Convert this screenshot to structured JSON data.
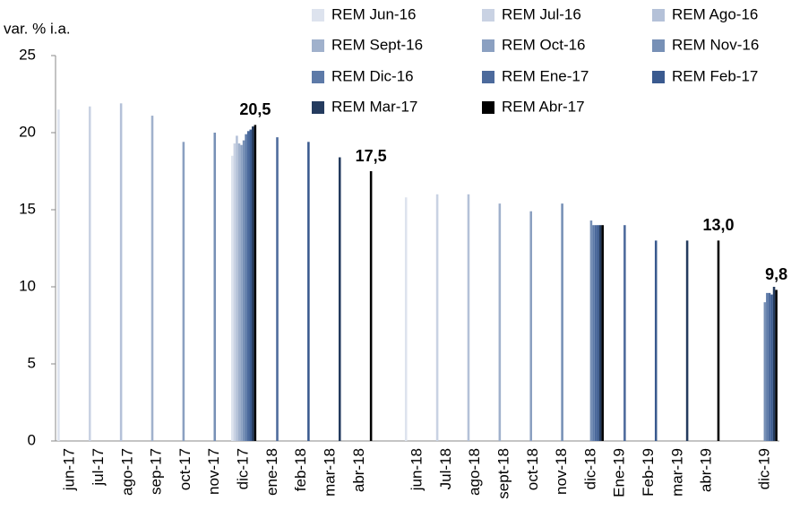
{
  "chart_data": {
    "type": "bar",
    "y_label": "var. % i.a.",
    "categories": [
      "jun-17",
      "jul-17",
      "ago-17",
      "sep-17",
      "oct-17",
      "nov-17",
      "dic-17",
      "ene-18",
      "feb-18",
      "mar-18",
      "abr-18",
      null,
      "jun-18",
      "Jul-18",
      "ago-18",
      "sept-18",
      "oct-18",
      "nov-18",
      "dic-18",
      "Ene-19",
      "Feb-19",
      "mar-19",
      "abr-19",
      null,
      "dic-19"
    ],
    "series": [
      {
        "name": "REM Jun-16",
        "color": "#dde3ee",
        "values": [
          21.5,
          null,
          null,
          null,
          null,
          null,
          18.5,
          null,
          null,
          null,
          null,
          null,
          15.8,
          null,
          null,
          null,
          null,
          null,
          null,
          null,
          null,
          null,
          null,
          null,
          null
        ]
      },
      {
        "name": "REM Jul-16",
        "color": "#c9d2e3",
        "values": [
          null,
          21.7,
          null,
          null,
          null,
          null,
          19.3,
          null,
          null,
          null,
          null,
          null,
          null,
          16.0,
          null,
          null,
          null,
          null,
          null,
          null,
          null,
          null,
          null,
          null,
          null
        ]
      },
      {
        "name": "REM Ago-16",
        "color": "#b4c1d8",
        "values": [
          null,
          null,
          21.9,
          null,
          null,
          null,
          19.8,
          null,
          null,
          null,
          null,
          null,
          null,
          null,
          16.0,
          null,
          null,
          null,
          null,
          null,
          null,
          null,
          null,
          null,
          null
        ]
      },
      {
        "name": "REM Sept-16",
        "color": "#a0b1cc",
        "values": [
          null,
          null,
          null,
          21.1,
          null,
          null,
          19.3,
          null,
          null,
          null,
          null,
          null,
          null,
          null,
          null,
          15.4,
          null,
          null,
          null,
          null,
          null,
          null,
          null,
          null,
          null
        ]
      },
      {
        "name": "REM Oct-16",
        "color": "#8ba0c1",
        "values": [
          null,
          null,
          null,
          null,
          19.4,
          null,
          19.2,
          null,
          null,
          null,
          null,
          null,
          null,
          null,
          null,
          null,
          14.9,
          null,
          null,
          null,
          null,
          null,
          null,
          null,
          null
        ]
      },
      {
        "name": "REM Nov-16",
        "color": "#7790b6",
        "values": [
          null,
          null,
          null,
          null,
          null,
          20.0,
          19.5,
          null,
          null,
          null,
          null,
          null,
          null,
          null,
          null,
          null,
          null,
          15.4,
          14.3,
          null,
          null,
          null,
          null,
          null,
          9.0
        ]
      },
      {
        "name": "REM Dic-16",
        "color": "#5d7aa8",
        "values": [
          null,
          null,
          null,
          null,
          null,
          null,
          19.9,
          null,
          null,
          null,
          null,
          null,
          null,
          null,
          null,
          null,
          null,
          null,
          14.0,
          null,
          null,
          null,
          null,
          null,
          9.6
        ]
      },
      {
        "name": "REM Ene-17",
        "color": "#4c6a9c",
        "values": [
          null,
          null,
          null,
          null,
          null,
          null,
          20.1,
          19.7,
          null,
          null,
          null,
          null,
          null,
          null,
          null,
          null,
          null,
          null,
          14.0,
          14.0,
          null,
          null,
          null,
          null,
          9.6
        ]
      },
      {
        "name": "REM Feb-17",
        "color": "#3a5a8f",
        "values": [
          null,
          null,
          null,
          null,
          null,
          null,
          20.2,
          null,
          19.4,
          null,
          null,
          null,
          null,
          null,
          null,
          null,
          null,
          null,
          14.0,
          null,
          13.0,
          null,
          null,
          null,
          9.5
        ]
      },
      {
        "name": "REM Mar-17",
        "color": "#243b5e",
        "values": [
          null,
          null,
          null,
          null,
          null,
          null,
          20.4,
          null,
          null,
          18.4,
          null,
          null,
          null,
          null,
          null,
          null,
          null,
          null,
          14.0,
          null,
          null,
          13.0,
          null,
          null,
          10.0
        ]
      },
      {
        "name": "REM Abr-17",
        "color": "#000000",
        "values": [
          null,
          null,
          null,
          null,
          null,
          null,
          20.5,
          null,
          null,
          null,
          17.5,
          null,
          null,
          null,
          null,
          null,
          null,
          null,
          14.0,
          null,
          null,
          null,
          13.0,
          null,
          9.8
        ],
        "value_labels": [
          null,
          null,
          null,
          null,
          null,
          null,
          "20,5",
          null,
          null,
          null,
          "17,5",
          null,
          null,
          null,
          null,
          null,
          null,
          null,
          null,
          null,
          null,
          null,
          "13,0",
          null,
          "9,8"
        ]
      }
    ],
    "ylim": [
      0,
      25
    ],
    "yticks": [
      0,
      5,
      10,
      15,
      20,
      25
    ],
    "grid": false
  }
}
